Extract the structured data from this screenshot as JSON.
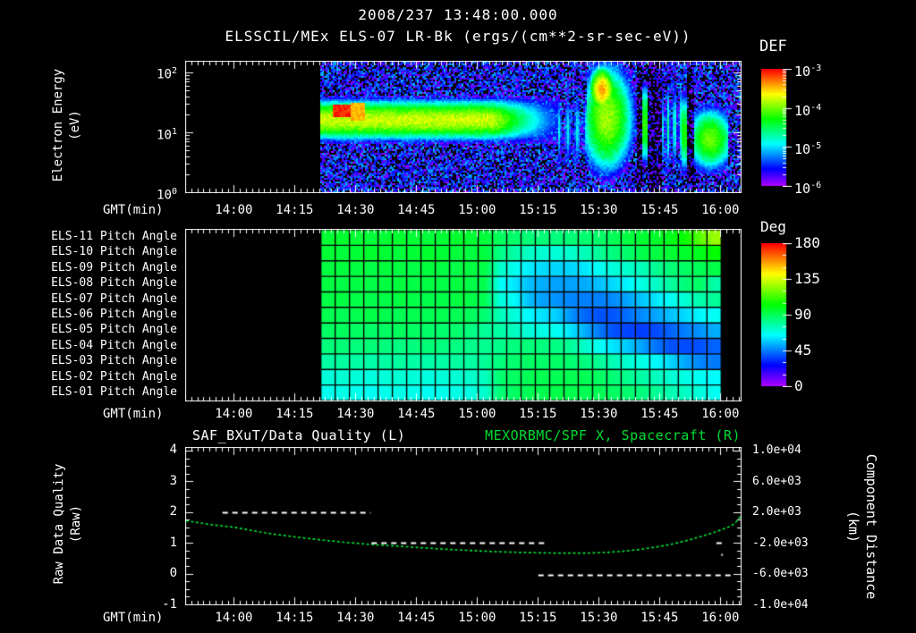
{
  "header": {
    "title": "2008/237 13:48:00.000",
    "subtitle": "ELSSCIL/MEx ELS-07 LR-Bk  (ergs/(cm**2-sr-sec-eV))"
  },
  "colors": {
    "accent_green": "#00dd33",
    "text": "#ffffff",
    "background": "#000000"
  },
  "time_axis": {
    "label": "GMT(min)",
    "start_label": "13:48",
    "domain_minutes": 137,
    "tick_labels": [
      "14:00",
      "14:15",
      "14:30",
      "14:45",
      "15:00",
      "15:15",
      "15:30",
      "15:45",
      "16:00"
    ],
    "tick_offsets_min": [
      12,
      27,
      42,
      57,
      72,
      87,
      102,
      117,
      132
    ],
    "minor_step_min": 1.5
  },
  "panel1": {
    "ylabel_line1": "Electron Energy",
    "ylabel_line2": "(eV)",
    "yticks": [
      {
        "base": "10",
        "exp": "2"
      },
      {
        "base": "10",
        "exp": "1"
      },
      {
        "base": "10",
        "exp": "0"
      }
    ],
    "colorbar": {
      "title": "DEF",
      "ticks": [
        {
          "base": "10",
          "exp": "-3"
        },
        {
          "base": "10",
          "exp": "-4"
        },
        {
          "base": "10",
          "exp": "-5"
        },
        {
          "base": "10",
          "exp": "-6"
        }
      ]
    }
  },
  "panel2": {
    "colorbar": {
      "title": "Deg",
      "ticks": [
        "180",
        "135",
        "90",
        "45",
        "0"
      ]
    }
  },
  "panel3": {
    "title_left": "SAF_BXuT/Data Quality (L)",
    "title_right": "MEXORBMC/SPF X, Spacecraft (R)",
    "ylabel_left_line1": "Raw Data Quality",
    "ylabel_left_line2": "(Raw)",
    "yticks_left": [
      "4",
      "3",
      "2",
      "1",
      "0",
      "-1"
    ],
    "yticks_left_values": [
      4,
      3,
      2,
      1,
      0,
      -1
    ],
    "ylabel_right_line1": "Component Distance",
    "ylabel_right_line2": "(km)",
    "yticks_right": [
      "1.0e+04",
      "6.0e+03",
      "2.0e+03",
      "-2.0e+03",
      "-6.0e+03",
      "-1.0e+04"
    ],
    "yticks_right_values": [
      10000,
      6000,
      2000,
      -2000,
      -6000,
      -10000
    ]
  },
  "chart_data": [
    {
      "type": "heatmap",
      "name": "electron_energy_spectrogram",
      "title": "ELSSCIL/MEx ELS-07 LR-Bk",
      "units": "ergs/(cm**2-sr-sec-eV)",
      "xlabel": "GMT(min)",
      "ylabel": "Electron Energy (eV)",
      "y_scale": "log",
      "y_range_ev": [
        1,
        150
      ],
      "y_log_top": 2.18,
      "colorbar_label": "DEF",
      "colorbar_log10_range": [
        -6,
        -3
      ],
      "t_data_start_min": 33.3,
      "t_data_end_min": 137,
      "background_noise_log_flux": [
        -6.35,
        -5.3
      ],
      "band": {
        "center_log_ev": 1.22,
        "sigma": 0.3,
        "peak_log_flux": -3.85,
        "fade_start_min": 76,
        "end_min": 92
      },
      "hot_spot": {
        "t0": 36.3,
        "t1": 40.8,
        "log_e0": 1.26,
        "log_e1": 1.48,
        "log_flux": -3.15
      },
      "warm_spot": {
        "t0": 40.8,
        "t1": 44,
        "log_e0": 1.2,
        "log_e1": 1.5,
        "log_flux": -3.6
      },
      "features": [
        {
          "kind": "stripes",
          "t0": 92,
          "t1": 99,
          "ce": 1.05,
          "se": 0.6,
          "peak": -5.2,
          "nstripes": 3
        },
        {
          "kind": "blob",
          "t0": 99,
          "t1": 111.5,
          "ct": 104,
          "ce": 1.25,
          "se": 0.85,
          "st": 5.5,
          "peak": -4.1
        },
        {
          "kind": "blob",
          "t0": 100,
          "t1": 106.5,
          "ct": 102.8,
          "ce": 1.72,
          "se": 0.35,
          "st": 2.6,
          "peak": -3.55
        },
        {
          "kind": "column",
          "t0": 112.6,
          "t1": 113.8,
          "ce": 1.15,
          "se": 0.6,
          "peak": -4.4
        },
        {
          "kind": "stripes",
          "t0": 117.5,
          "t1": 122.3,
          "ce": 1.1,
          "se": 0.7,
          "peak": -5.0,
          "nstripes": 3
        },
        {
          "kind": "column",
          "t0": 122.4,
          "t1": 123.8,
          "ce": 1.0,
          "se": 0.6,
          "peak": -4.5
        },
        {
          "kind": "blob",
          "t0": 125.3,
          "t1": 133.8,
          "ct": 129.5,
          "ce": 0.9,
          "se": 0.5,
          "st": 5.0,
          "peak": -4.25
        }
      ],
      "gaps_min": [
        [
          111.3,
          112.6
        ],
        [
          113.8,
          117.5
        ],
        [
          123.8,
          125.3
        ]
      ]
    },
    {
      "type": "heatmap",
      "name": "pitch_angle_panel",
      "rows": [
        "ELS-11 Pitch Angle",
        "ELS-10 Pitch Angle",
        "ELS-09 Pitch Angle",
        "ELS-08 Pitch Angle",
        "ELS-07 Pitch Angle",
        "ELS-06 Pitch Angle",
        "ELS-05 Pitch Angle",
        "ELS-04 Pitch Angle",
        "ELS-03 Pitch Angle",
        "ELS-02 Pitch Angle",
        "ELS-01 Pitch Angle"
      ],
      "colorbar_label": "Deg",
      "value_range_deg": [
        0,
        180
      ],
      "t_start_min": 33.3,
      "t_end_min": 132.2,
      "cols": 28,
      "values_deg": [
        [
          95,
          96,
          95,
          94,
          95,
          96,
          95,
          94,
          95,
          96,
          95,
          94,
          89,
          87,
          85,
          85,
          84,
          85,
          86,
          87,
          90,
          93,
          95,
          97,
          99,
          104,
          116,
          126
        ],
        [
          95,
          94,
          95,
          96,
          95,
          94,
          95,
          96,
          95,
          94,
          93,
          94,
          83,
          78,
          73,
          71,
          70,
          72,
          75,
          80,
          84,
          87,
          92,
          93,
          95,
          96,
          99,
          103
        ],
        [
          93,
          94,
          93,
          92,
          94,
          93,
          92,
          94,
          93,
          92,
          93,
          92,
          73,
          67,
          62,
          59,
          58,
          58,
          61,
          66,
          70,
          72,
          75,
          81,
          85,
          88,
          90,
          92
        ],
        [
          93,
          92,
          93,
          92,
          93,
          94,
          92,
          93,
          92,
          93,
          92,
          91,
          66,
          61,
          55,
          52,
          50,
          50,
          52,
          55,
          59,
          63,
          69,
          73,
          79,
          85,
          88,
          77
        ],
        [
          92,
          93,
          92,
          91,
          92,
          93,
          92,
          91,
          92,
          93,
          92,
          90,
          70,
          65,
          55,
          50,
          48,
          46,
          45,
          45,
          47,
          51,
          56,
          61,
          66,
          71,
          77,
          80
        ],
        [
          91,
          90,
          91,
          92,
          91,
          90,
          91,
          90,
          91,
          90,
          89,
          86,
          75,
          70,
          64,
          60,
          57,
          48,
          41,
          38,
          39,
          43,
          47,
          51,
          55,
          59,
          63,
          66
        ],
        [
          88,
          89,
          88,
          87,
          88,
          89,
          88,
          87,
          86,
          87,
          83,
          80,
          78,
          74,
          70,
          68,
          66,
          60,
          52,
          44,
          38,
          36,
          35,
          37,
          41,
          45,
          48,
          52
        ],
        [
          84,
          85,
          84,
          85,
          84,
          83,
          84,
          85,
          84,
          83,
          82,
          81,
          82,
          84,
          85,
          84,
          83,
          80,
          72,
          66,
          60,
          56,
          50,
          43,
          38,
          37,
          38,
          41
        ],
        [
          78,
          79,
          78,
          77,
          78,
          79,
          78,
          77,
          78,
          79,
          78,
          80,
          84,
          86,
          88,
          87,
          88,
          86,
          84,
          80,
          75,
          71,
          68,
          64,
          58,
          51,
          46,
          44
        ],
        [
          70,
          71,
          70,
          69,
          70,
          71,
          70,
          69,
          70,
          71,
          72,
          74,
          86,
          88,
          90,
          91,
          90,
          91,
          90,
          88,
          85,
          81,
          78,
          74,
          71,
          68,
          66,
          64
        ],
        [
          67,
          68,
          67,
          66,
          67,
          68,
          67,
          66,
          67,
          68,
          69,
          72,
          85,
          88,
          90,
          91,
          92,
          91,
          90,
          90,
          88,
          86,
          84,
          80,
          76,
          73,
          70,
          66
        ]
      ]
    },
    {
      "type": "line",
      "name": "quality_and_distance",
      "left_series": {
        "name": "SAF_BXuT/Data Quality (L)",
        "axis_range": [
          -1,
          4.09
        ],
        "style": "white-dashed",
        "segments_t0_t1_value": [
          [
            9,
            45.6,
            2
          ],
          [
            45.8,
            88.7,
            1
          ],
          [
            87,
            134.7,
            -0.03
          ],
          [
            131,
            132.6,
            1.0
          ],
          [
            132.2,
            132.6,
            0.62
          ]
        ]
      },
      "right_series": {
        "name": "MEXORBMC/SPF X, Spacecraft (R)",
        "axis_range_km": [
          -10000,
          10000
        ],
        "style": "green-dotted",
        "points_t_km": [
          [
            0,
            700
          ],
          [
            6,
            200
          ],
          [
            12,
            -150
          ],
          [
            20,
            -900
          ],
          [
            28,
            -1450
          ],
          [
            34,
            -1800
          ],
          [
            40,
            -2100
          ],
          [
            46,
            -2350
          ],
          [
            52,
            -2550
          ],
          [
            58,
            -2750
          ],
          [
            64,
            -2950
          ],
          [
            70,
            -3100
          ],
          [
            76,
            -3250
          ],
          [
            82,
            -3350
          ],
          [
            88,
            -3420
          ],
          [
            94,
            -3450
          ],
          [
            100,
            -3430
          ],
          [
            104,
            -3350
          ],
          [
            108,
            -3200
          ],
          [
            112,
            -2980
          ],
          [
            116,
            -2680
          ],
          [
            120,
            -2300
          ],
          [
            124,
            -1800
          ],
          [
            128,
            -1200
          ],
          [
            131,
            -700
          ],
          [
            134,
            -100
          ],
          [
            135.5,
            300
          ],
          [
            137,
            1300
          ]
        ]
      }
    }
  ]
}
